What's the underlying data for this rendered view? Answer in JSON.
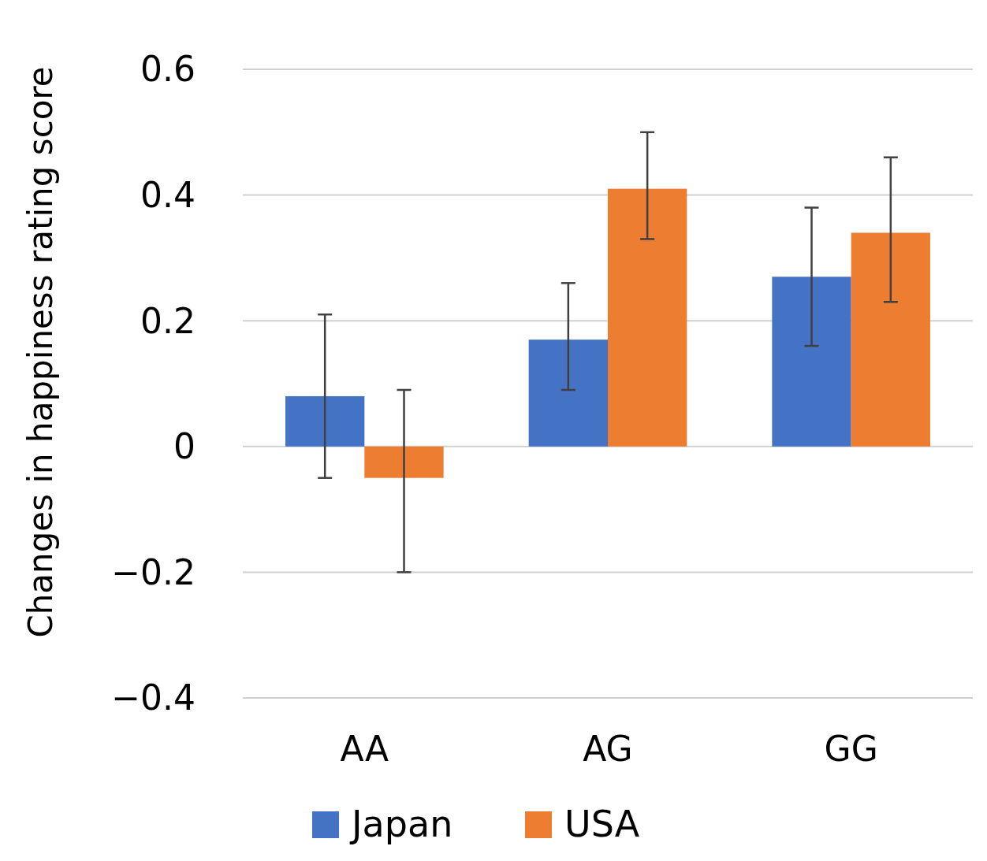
{
  "chart_data": {
    "type": "bar",
    "ylabel": "Changes in happiness rating score",
    "categories": [
      "AA",
      "AG",
      "GG"
    ],
    "series": [
      {
        "name": "Japan",
        "color": "#4472c4",
        "values": [
          0.08,
          0.17,
          0.27
        ],
        "errors": [
          [
            -0.05,
            0.21
          ],
          [
            0.09,
            0.26
          ],
          [
            0.16,
            0.38
          ]
        ]
      },
      {
        "name": "USA",
        "color": "#ed7d31",
        "values": [
          -0.05,
          0.41,
          0.34
        ],
        "errors": [
          [
            -0.2,
            0.09
          ],
          [
            0.33,
            0.5
          ],
          [
            0.23,
            0.46
          ]
        ]
      }
    ],
    "ylim": [
      -0.4,
      0.6
    ],
    "yticks": [
      {
        "value": -0.4,
        "label": "−0.4"
      },
      {
        "value": -0.2,
        "label": "−0.2"
      },
      0,
      0.2,
      0.4,
      0.6
    ],
    "grid": "y",
    "legend": "bottom"
  }
}
